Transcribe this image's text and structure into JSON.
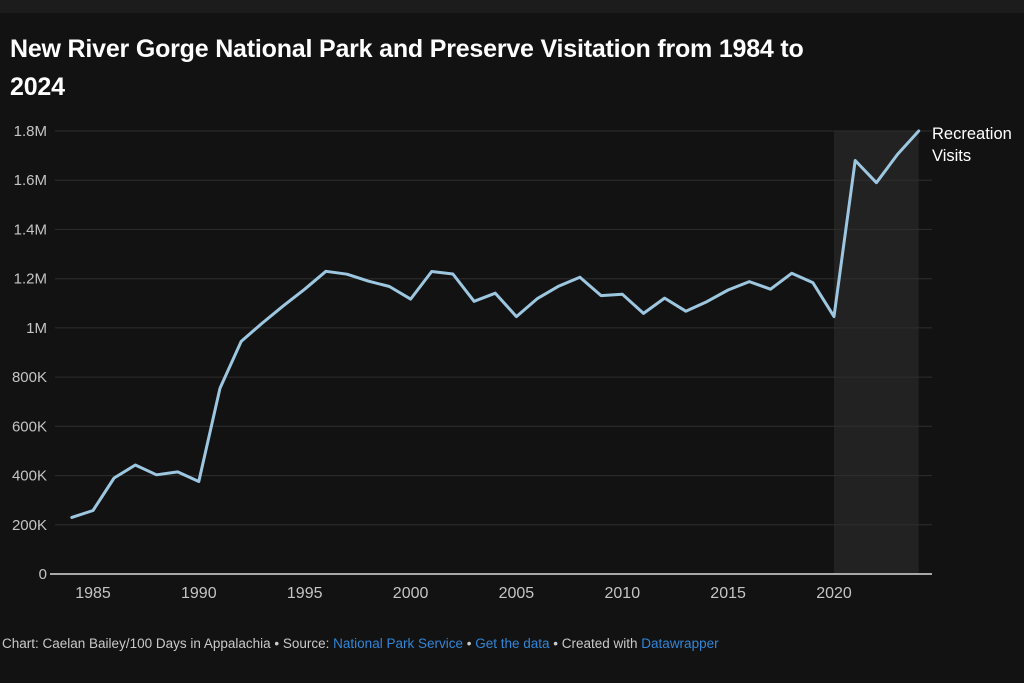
{
  "header": {
    "title_line1": "New River Gorge National Park and Preserve Visitation from 1984 to",
    "title_line2": "2024"
  },
  "chart_data": {
    "type": "line",
    "title": "New River Gorge National Park and Preserve Visitation from 1984 to 2024",
    "series_label": "Recreation Visits",
    "xlabel": "",
    "ylabel": "",
    "xlim": [
      1984,
      2024
    ],
    "ylim": [
      0,
      1800000
    ],
    "grid": "horizontal",
    "legend_position": "end-of-line",
    "x": [
      1984,
      1985,
      1986,
      1987,
      1988,
      1989,
      1990,
      1991,
      1992,
      1993,
      1994,
      1995,
      1996,
      1997,
      1998,
      1999,
      2000,
      2001,
      2002,
      2003,
      2004,
      2005,
      2006,
      2007,
      2008,
      2009,
      2010,
      2011,
      2012,
      2013,
      2014,
      2015,
      2016,
      2017,
      2018,
      2019,
      2020,
      2021,
      2022,
      2023,
      2024
    ],
    "values": [
      230000,
      258000,
      390000,
      443000,
      403000,
      415000,
      376000,
      755000,
      945000,
      1020000,
      1090000,
      1157000,
      1230000,
      1218000,
      1190000,
      1168000,
      1117000,
      1229000,
      1219000,
      1108000,
      1141000,
      1046000,
      1120000,
      1170000,
      1206000,
      1131000,
      1137000,
      1059000,
      1121000,
      1068000,
      1107000,
      1154000,
      1188000,
      1157000,
      1222000,
      1184000,
      1046000,
      1680000,
      1590000,
      1705000,
      1800000
    ],
    "xticks": [
      1985,
      1990,
      1995,
      2000,
      2005,
      2010,
      2015,
      2020
    ],
    "ytick_values": [
      0,
      200000,
      400000,
      600000,
      800000,
      1000000,
      1200000,
      1400000,
      1600000,
      1800000
    ],
    "ytick_labels": [
      "0",
      "200K",
      "400K",
      "600K",
      "800K",
      "1M",
      "1.2M",
      "1.4M",
      "1.6M",
      "1.8M"
    ],
    "highlight_band": {
      "from": 2020,
      "to": 2024
    }
  },
  "colors": {
    "background": "#121212",
    "line": "#9dc7e0",
    "grid": "#2e2e2e",
    "baseline": "#a8a8a8",
    "band": "rgba(255,255,255,0.07)",
    "text_primary": "#ffffff",
    "text_axis": "#c4c4c4",
    "link": "#3186d8"
  },
  "footer": {
    "prefix": "Chart: Caelan Bailey/100 Days in Appalachia • Source: ",
    "source_link": "National Park Service",
    "sep1": " • ",
    "data_link": "Get the data",
    "sep2": " • Created with ",
    "tool_link": "Datawrapper"
  }
}
